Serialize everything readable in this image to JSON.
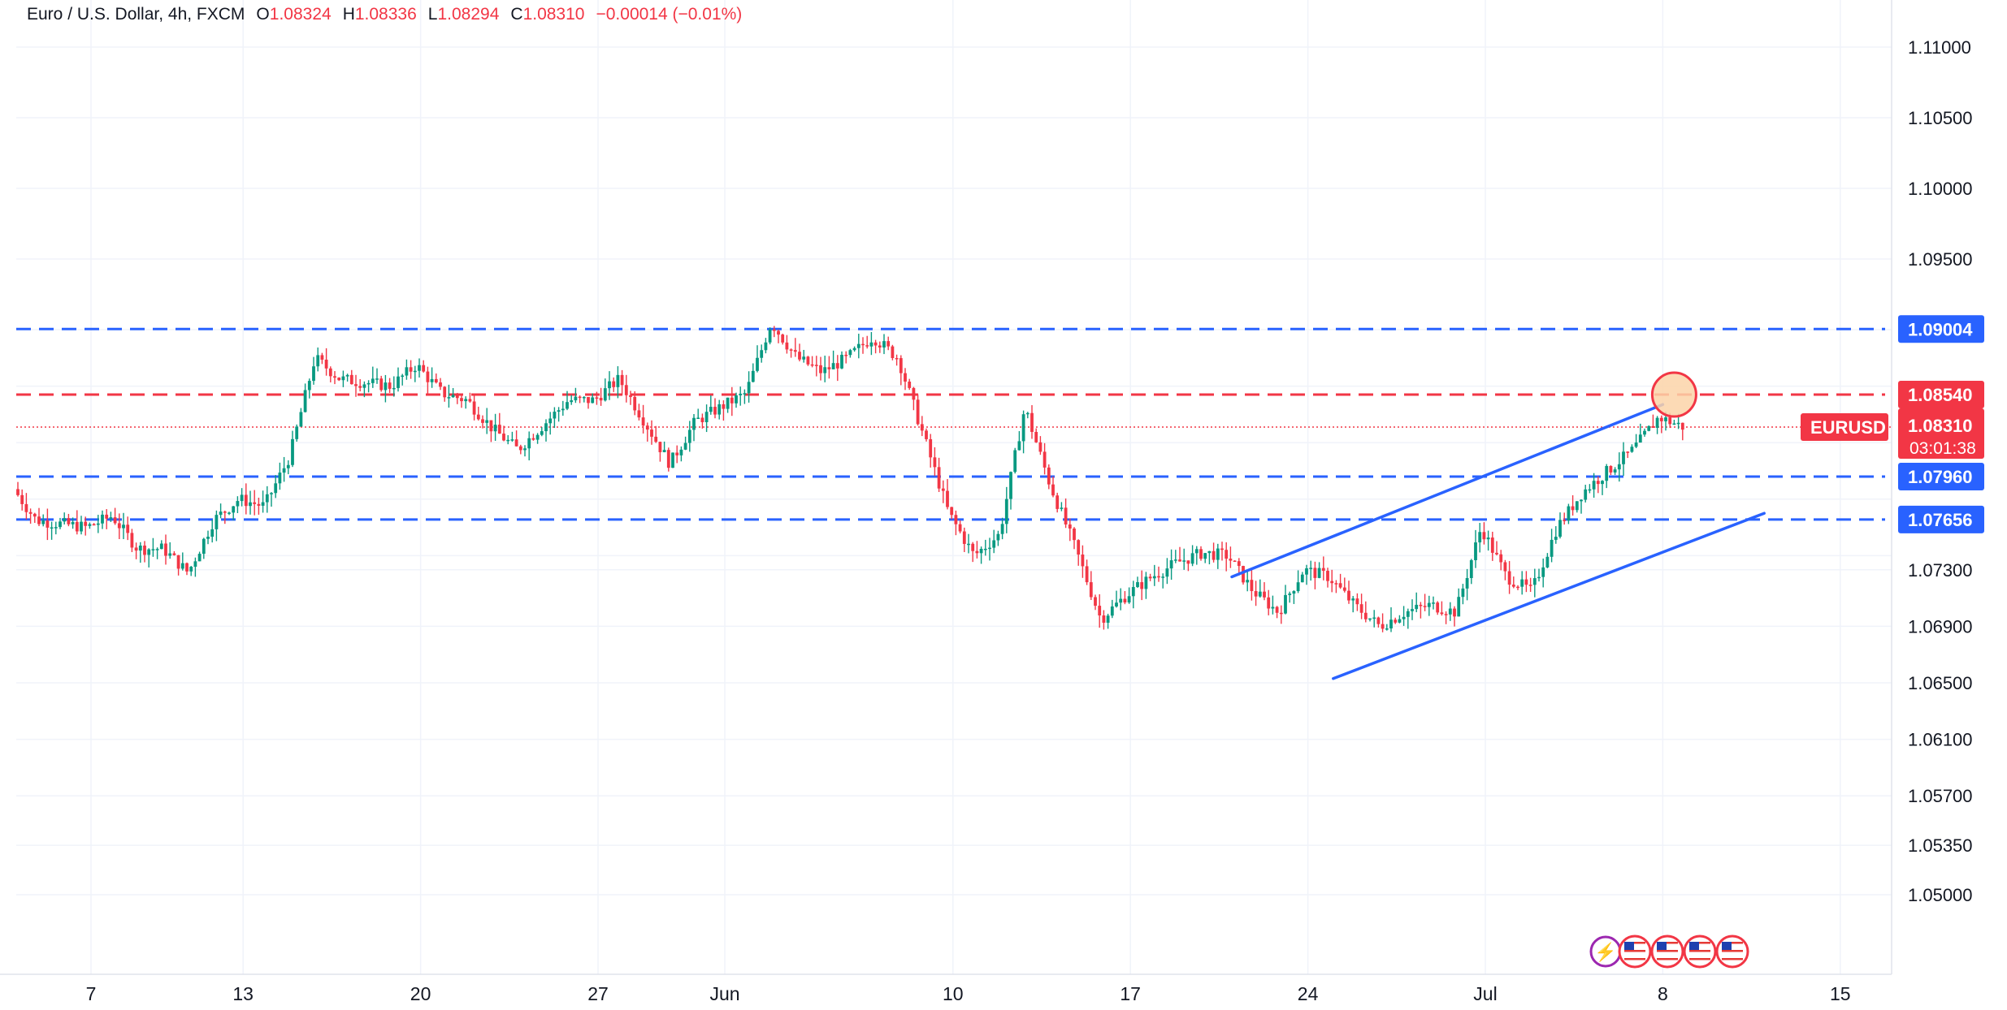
{
  "legend": {
    "symbol": "Euro / U.S. Dollar, 4h, FXCM",
    "o_key": "O",
    "o": "1.08324",
    "h_key": "H",
    "h": "1.08336",
    "l_key": "L",
    "l": "1.08294",
    "c_key": "C",
    "c": "1.08310",
    "change": "−0.00014 (−0.01%)"
  },
  "colors": {
    "up": "#089981",
    "down": "#f23645",
    "blue_line": "#2962ff",
    "red_line": "#f23645",
    "grid": "#f0f3fa",
    "axis_text": "#131722",
    "circle_fill": "#fbd3a8",
    "circle_stroke": "#f23645"
  },
  "chart_data": {
    "type": "candlestick",
    "symbol": "EURUSD",
    "timeframe": "4h",
    "y_axis": {
      "ticks": [
        "1.11000",
        "1.10500",
        "1.10000",
        "1.09500",
        "1.07300",
        "1.06900",
        "1.06500",
        "1.06100",
        "1.05700",
        "1.05350",
        "1.05000"
      ]
    },
    "x_axis": {
      "ticks": [
        "7",
        "13",
        "20",
        "27",
        "Jun",
        "10",
        "17",
        "24",
        "Jul",
        "8",
        "15"
      ]
    },
    "horizontal_levels": [
      {
        "price": 1.09004,
        "label": "1.09004",
        "color": "#2962ff",
        "style": "dashed"
      },
      {
        "price": 1.0854,
        "label": "1.08540",
        "color": "#f23645",
        "style": "dashed"
      },
      {
        "price": 1.0796,
        "label": "1.07960",
        "color": "#2962ff",
        "style": "dashed"
      },
      {
        "price": 1.07656,
        "label": "1.07656",
        "color": "#2962ff",
        "style": "dashed"
      }
    ],
    "last_price": {
      "label": "EURUSD",
      "price": "1.08310",
      "countdown": "03:01:38",
      "value": 1.0831
    },
    "trend_channel": {
      "upper": [
        [
          "2024-06-21",
          1.0725
        ],
        [
          "2024-07-08",
          1.0847
        ]
      ],
      "lower": [
        [
          "2024-06-25",
          1.0653
        ],
        [
          "2024-07-12",
          1.077
        ]
      ]
    },
    "highlight": {
      "date": "2024-07-08",
      "price": 1.0854,
      "note": "circle at channel top / resistance"
    },
    "ohlc_path": [
      [
        "2024-05-03",
        1.0725
      ],
      [
        "2024-05-04",
        1.079
      ],
      [
        "2024-05-05",
        1.0765
      ],
      [
        "2024-05-07",
        1.076
      ],
      [
        "2024-05-08",
        1.0768
      ],
      [
        "2024-05-09",
        1.0745
      ],
      [
        "2024-05-10",
        1.0745
      ],
      [
        "2024-05-11",
        1.0728
      ],
      [
        "2024-05-12",
        1.0765
      ],
      [
        "2024-05-13",
        1.078
      ],
      [
        "2024-05-14",
        1.0775
      ],
      [
        "2024-05-15",
        1.081
      ],
      [
        "2024-05-16",
        1.088
      ],
      [
        "2024-05-17",
        1.0865
      ],
      [
        "2024-05-19",
        1.086
      ],
      [
        "2024-05-20",
        1.0875
      ],
      [
        "2024-05-21",
        1.0855
      ],
      [
        "2024-05-22",
        1.085
      ],
      [
        "2024-05-23",
        1.083
      ],
      [
        "2024-05-24",
        1.0815
      ],
      [
        "2024-05-26",
        1.085
      ],
      [
        "2024-05-27",
        1.085
      ],
      [
        "2024-05-28",
        1.0865
      ],
      [
        "2024-05-29",
        1.0835
      ],
      [
        "2024-05-30",
        1.0805
      ],
      [
        "2024-05-31",
        1.0835
      ],
      [
        "2024-06-02",
        1.0855
      ],
      [
        "2024-06-03",
        1.0905
      ],
      [
        "2024-06-04",
        1.088
      ],
      [
        "2024-06-05",
        1.087
      ],
      [
        "2024-06-06",
        1.088
      ],
      [
        "2024-06-07",
        1.0895
      ],
      [
        "2024-06-08",
        1.088
      ],
      [
        "2024-06-09",
        1.0825
      ],
      [
        "2024-06-10",
        1.077
      ],
      [
        "2024-06-11",
        1.074
      ],
      [
        "2024-06-12",
        1.0755
      ],
      [
        "2024-06-13",
        1.0845
      ],
      [
        "2024-06-14",
        1.079
      ],
      [
        "2024-06-15",
        1.0745
      ],
      [
        "2024-06-16",
        1.0695
      ],
      [
        "2024-06-17",
        1.0712
      ],
      [
        "2024-06-18",
        1.0725
      ],
      [
        "2024-06-19",
        1.0735
      ],
      [
        "2024-06-20",
        1.0742
      ],
      [
        "2024-06-21",
        1.074
      ],
      [
        "2024-06-22",
        1.0715
      ],
      [
        "2024-06-23",
        1.07
      ],
      [
        "2024-06-24",
        1.073
      ],
      [
        "2024-06-25",
        1.0725
      ],
      [
        "2024-06-26",
        1.0705
      ],
      [
        "2024-06-27",
        1.069
      ],
      [
        "2024-06-28",
        1.07
      ],
      [
        "2024-06-29",
        1.0705
      ],
      [
        "2024-06-30",
        1.07
      ],
      [
        "2024-07-01",
        1.076
      ],
      [
        "2024-07-02",
        1.0725
      ],
      [
        "2024-07-03",
        1.0715
      ],
      [
        "2024-07-04",
        1.076
      ],
      [
        "2024-07-05",
        1.0785
      ],
      [
        "2024-07-06",
        1.08
      ],
      [
        "2024-07-07",
        1.0815
      ],
      [
        "2024-07-08",
        1.0838
      ],
      [
        "2024-07-09",
        1.0831
      ]
    ]
  }
}
